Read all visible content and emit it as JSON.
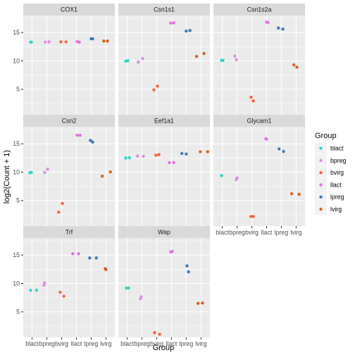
{
  "chart_data": {
    "type": "scatter",
    "facets": [
      "COX1",
      "Csn1s1",
      "Csn1s2a",
      "Csn2",
      "Eef1a1",
      "Glycam1",
      "Trf",
      "Wap"
    ],
    "categories": [
      "blact",
      "bpreg",
      "bvirg",
      "llact",
      "lpreg",
      "lvirg"
    ],
    "xlabel": "Group",
    "ylabel": "log2(Count + 1)",
    "ylim": [
      0.5,
      18
    ],
    "yticks": [
      5,
      10,
      15
    ],
    "grid": true,
    "legend": {
      "title": "Group",
      "placement": "right",
      "entries": [
        "blact",
        "bpreg",
        "bvirg",
        "llact",
        "lpreg",
        "lvirg"
      ]
    },
    "colors": {
      "blact": "#2ad4c5",
      "bpreg": "#d98ee0",
      "bvirg": "#f4643e",
      "llact": "#e46fe3",
      "lpreg": "#3b78b8",
      "lvirg": "#d6621f"
    },
    "points": {
      "COX1": {
        "blact": [
          [
            -0.1,
            13.3
          ],
          [
            -0.05,
            13.3
          ]
        ],
        "bpreg": [
          [
            -0.1,
            13.3
          ],
          [
            0.15,
            13.35
          ]
        ],
        "bvirg": [
          [
            -0.05,
            13.35
          ],
          [
            0.3,
            13.35
          ]
        ],
        "llact": [
          [
            0.05,
            13.4
          ],
          [
            0.2,
            13.3
          ]
        ],
        "lpreg": [
          [
            0.0,
            13.9
          ],
          [
            0.1,
            13.9
          ]
        ],
        "lvirg": [
          [
            -0.15,
            13.5
          ],
          [
            0.1,
            13.5
          ]
        ]
      },
      "Csn1s1": {
        "blact": [
          [
            -0.1,
            9.95
          ],
          [
            0.05,
            10.05
          ]
        ],
        "bpreg": [
          [
            -0.25,
            9.8
          ],
          [
            0.05,
            10.4
          ]
        ],
        "bvirg": [
          [
            -0.2,
            4.9
          ],
          [
            0.05,
            5.55
          ]
        ],
        "llact": [
          [
            -0.05,
            16.65
          ],
          [
            0.15,
            16.7
          ]
        ],
        "lpreg": [
          [
            0.0,
            15.25
          ],
          [
            0.25,
            15.35
          ]
        ],
        "lvirg": [
          [
            -0.3,
            10.8
          ],
          [
            0.2,
            11.3
          ]
        ]
      },
      "Csn1s2a": {
        "blact": [
          [
            -0.05,
            10.1
          ],
          [
            0.05,
            10.1
          ]
        ],
        "bpreg": [
          [
            -0.15,
            10.85
          ],
          [
            -0.05,
            10.2
          ]
        ],
        "bvirg": [
          [
            -0.05,
            3.6
          ],
          [
            0.1,
            2.95
          ]
        ],
        "llact": [
          [
            0.0,
            16.85
          ],
          [
            0.1,
            16.75
          ]
        ],
        "lpreg": [
          [
            -0.2,
            15.8
          ],
          [
            0.1,
            15.6
          ]
        ],
        "lvirg": [
          [
            -0.15,
            9.3
          ],
          [
            0.05,
            8.9
          ]
        ]
      },
      "Csn2": {
        "blact": [
          [
            -0.15,
            9.9
          ],
          [
            -0.05,
            9.95
          ]
        ],
        "bpreg": [
          [
            -0.15,
            9.95
          ],
          [
            0.05,
            10.55
          ]
        ],
        "bvirg": [
          [
            -0.2,
            2.95
          ],
          [
            0.05,
            4.5
          ]
        ],
        "llact": [
          [
            0.05,
            16.5
          ],
          [
            0.25,
            16.5
          ]
        ],
        "lpreg": [
          [
            -0.05,
            15.6
          ],
          [
            0.1,
            15.3
          ]
        ],
        "lvirg": [
          [
            -0.25,
            9.3
          ],
          [
            0.3,
            10.05
          ]
        ]
      },
      "Eef1a1": {
        "blact": [
          [
            -0.1,
            12.5
          ],
          [
            0.15,
            12.55
          ]
        ],
        "bpreg": [
          [
            -0.3,
            12.85
          ],
          [
            0.1,
            12.8
          ]
        ],
        "bvirg": [
          [
            -0.05,
            13.0
          ],
          [
            0.15,
            13.1
          ]
        ],
        "llact": [
          [
            -0.15,
            11.7
          ],
          [
            0.15,
            11.7
          ]
        ],
        "lpreg": [
          [
            -0.3,
            13.3
          ],
          [
            0.0,
            13.2
          ]
        ],
        "lvirg": [
          [
            -0.05,
            13.6
          ],
          [
            0.45,
            13.6
          ]
        ]
      },
      "Glycam1": {
        "blact": [
          [
            -0.05,
            9.4
          ],
          [
            -0.05,
            9.4
          ]
        ],
        "bpreg": [
          [
            -0.05,
            8.7
          ],
          [
            0.0,
            9.0
          ]
        ],
        "bvirg": [
          [
            -0.05,
            2.2
          ],
          [
            0.1,
            2.2
          ]
        ],
        "llact": [
          [
            -0.05,
            15.9
          ],
          [
            0.0,
            15.8
          ]
        ],
        "lpreg": [
          [
            -0.15,
            14.1
          ],
          [
            0.15,
            13.65
          ]
        ],
        "lvirg": [
          [
            -0.3,
            6.2
          ],
          [
            0.2,
            6.1
          ]
        ]
      },
      "Trf": {
        "blact": [
          [
            -0.1,
            8.8
          ],
          [
            0.3,
            8.8
          ]
        ],
        "bpreg": [
          [
            -0.2,
            9.7
          ],
          [
            -0.15,
            10.1
          ]
        ],
        "bvirg": [
          [
            -0.1,
            8.45
          ],
          [
            0.15,
            7.75
          ]
        ],
        "llact": [
          [
            -0.25,
            15.25
          ],
          [
            0.15,
            15.25
          ]
        ],
        "lpreg": [
          [
            -0.1,
            14.5
          ],
          [
            0.35,
            14.5
          ]
        ],
        "lvirg": [
          [
            -0.05,
            12.6
          ],
          [
            0.0,
            12.45
          ]
        ]
      },
      "Wap": {
        "blact": [
          [
            -0.05,
            9.2
          ],
          [
            0.1,
            9.2
          ]
        ],
        "bpreg": [
          [
            -0.1,
            7.3
          ],
          [
            -0.05,
            7.65
          ]
        ],
        "bvirg": [
          [
            -0.15,
            1.35
          ],
          [
            0.2,
            1.05
          ]
        ],
        "llact": [
          [
            -0.05,
            15.55
          ],
          [
            0.05,
            15.65
          ]
        ],
        "lpreg": [
          [
            0.05,
            13.1
          ],
          [
            0.15,
            12.05
          ]
        ],
        "lvirg": [
          [
            -0.2,
            6.5
          ],
          [
            0.1,
            6.55
          ]
        ]
      }
    }
  }
}
